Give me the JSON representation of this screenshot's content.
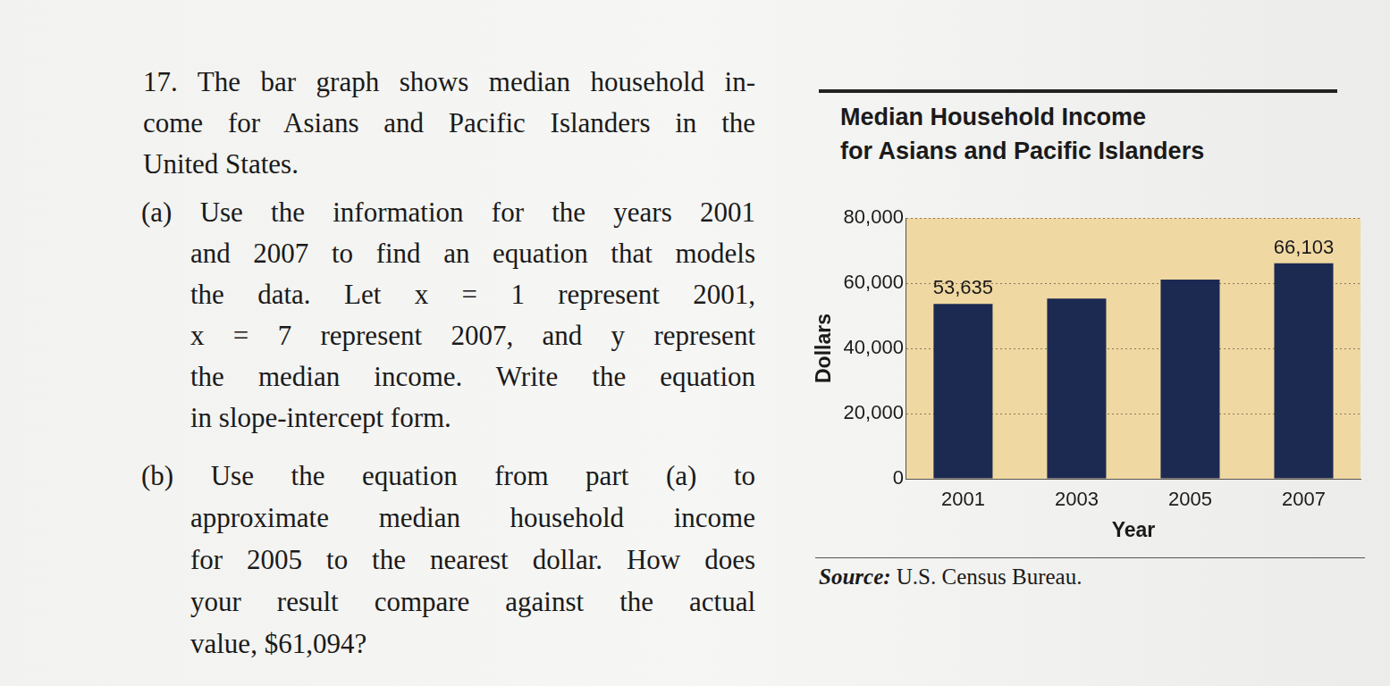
{
  "problem": {
    "intro": [
      "17. The bar graph shows median household in-",
      "come for Asians and Pacific Islanders in the",
      "United States."
    ],
    "part_a": [
      "(a) Use the information for the years 2001",
      "and 2007 to find an equation that models",
      "the data. Let x = 1 represent 2001,",
      "x = 7 represent 2007, and y represent",
      "the median income. Write the equation",
      "in slope-intercept form."
    ],
    "part_b": [
      "(b) Use the equation from part (a) to",
      "approximate median household income",
      "for 2005 to the nearest dollar. How does",
      "your result compare against the actual",
      "value, $61,094?"
    ]
  },
  "chart_data": {
    "type": "bar",
    "title": [
      "Median Household Income",
      "for Asians and Pacific Islanders"
    ],
    "x_label": "Year",
    "y_label": "Dollars",
    "categories": [
      "2001",
      "2003",
      "2005",
      "2007"
    ],
    "values": [
      53635,
      55300,
      61094,
      66103
    ],
    "value_labels": [
      "53,635",
      null,
      null,
      "66,103"
    ],
    "data_labels": true,
    "color": "#1c2a52",
    "ylim": [
      0,
      80000
    ],
    "yticks": [
      0,
      {
        "value": 20000,
        "label": "20,000"
      },
      {
        "value": 40000,
        "label": "40,000"
      },
      {
        "value": 60000,
        "label": "60,000"
      },
      {
        "value": 80000,
        "label": "80,000"
      }
    ],
    "grid": true,
    "source_label": "Source:",
    "source_text": "U.S. Census Bureau."
  }
}
